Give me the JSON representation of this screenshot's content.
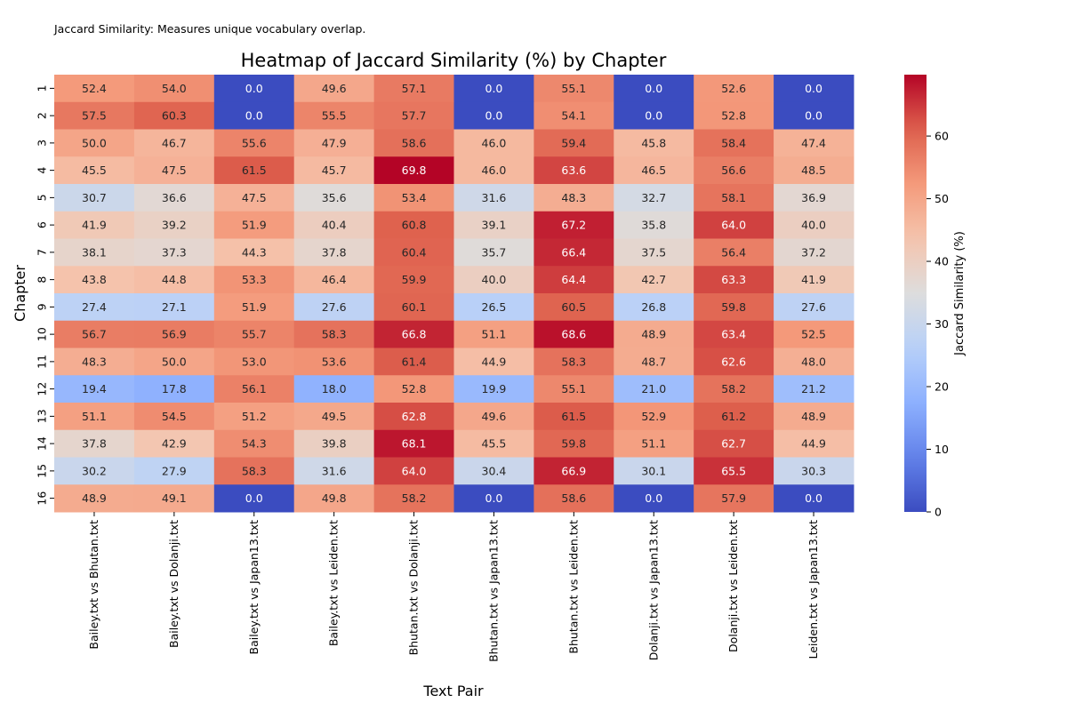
{
  "note": "Jaccard Similarity: Measures unique vocabulary overlap.",
  "chart_data": {
    "type": "heatmap",
    "title": "Heatmap of Jaccard Similarity (%) by Chapter",
    "xlabel": "Text Pair",
    "ylabel": "Chapter",
    "colorbar_label": "Jaccard Similarity (%)",
    "colorbar_ticks": [
      0,
      10,
      20,
      30,
      40,
      50,
      60
    ],
    "value_range": [
      0,
      69.8
    ],
    "colormap": "coolwarm",
    "columns": [
      "Bailey.txt vs Bhutan.txt",
      "Bailey.txt vs Dolanji.txt",
      "Bailey.txt vs Japan13.txt",
      "Bailey.txt vs Leiden.txt",
      "Bhutan.txt vs Dolanji.txt",
      "Bhutan.txt vs Japan13.txt",
      "Bhutan.txt vs Leiden.txt",
      "Dolanji.txt vs Japan13.txt",
      "Dolanji.txt vs Leiden.txt",
      "Leiden.txt vs Japan13.txt"
    ],
    "rows": [
      "1",
      "2",
      "3",
      "4",
      "5",
      "6",
      "7",
      "8",
      "9",
      "10",
      "11",
      "12",
      "13",
      "14",
      "15",
      "16"
    ],
    "values": [
      [
        52.4,
        54.0,
        0.0,
        49.6,
        57.1,
        0.0,
        55.1,
        0.0,
        52.6,
        0.0
      ],
      [
        57.5,
        60.3,
        0.0,
        55.5,
        57.7,
        0.0,
        54.1,
        0.0,
        52.8,
        0.0
      ],
      [
        50.0,
        46.7,
        55.6,
        47.9,
        58.6,
        46.0,
        59.4,
        45.8,
        58.4,
        47.4
      ],
      [
        45.5,
        47.5,
        61.5,
        45.7,
        69.8,
        46.0,
        63.6,
        46.5,
        56.6,
        48.5
      ],
      [
        30.7,
        36.6,
        47.5,
        35.6,
        53.4,
        31.6,
        48.3,
        32.7,
        58.1,
        36.9
      ],
      [
        41.9,
        39.2,
        51.9,
        40.4,
        60.8,
        39.1,
        67.2,
        35.8,
        64.0,
        40.0
      ],
      [
        38.1,
        37.3,
        44.3,
        37.8,
        60.4,
        35.7,
        66.4,
        37.5,
        56.4,
        37.2
      ],
      [
        43.8,
        44.8,
        53.3,
        46.4,
        59.9,
        40.0,
        64.4,
        42.7,
        63.3,
        41.9
      ],
      [
        27.4,
        27.1,
        51.9,
        27.6,
        60.1,
        26.5,
        60.5,
        26.8,
        59.8,
        27.6
      ],
      [
        56.7,
        56.9,
        55.7,
        58.3,
        66.8,
        51.1,
        68.6,
        48.9,
        63.4,
        52.5
      ],
      [
        48.3,
        50.0,
        53.0,
        53.6,
        61.4,
        44.9,
        58.3,
        48.7,
        62.6,
        48.0
      ],
      [
        19.4,
        17.8,
        56.1,
        18.0,
        52.8,
        19.9,
        55.1,
        21.0,
        58.2,
        21.2
      ],
      [
        51.1,
        54.5,
        51.2,
        49.5,
        62.8,
        49.6,
        61.5,
        52.9,
        61.2,
        48.9
      ],
      [
        37.8,
        42.9,
        54.3,
        39.8,
        68.1,
        45.5,
        59.8,
        51.1,
        62.7,
        44.9
      ],
      [
        30.2,
        27.9,
        58.3,
        31.6,
        64.0,
        30.4,
        66.9,
        30.1,
        65.5,
        30.3
      ],
      [
        48.9,
        49.1,
        0.0,
        49.8,
        58.2,
        0.0,
        58.6,
        0.0,
        57.9,
        0.0
      ]
    ]
  }
}
